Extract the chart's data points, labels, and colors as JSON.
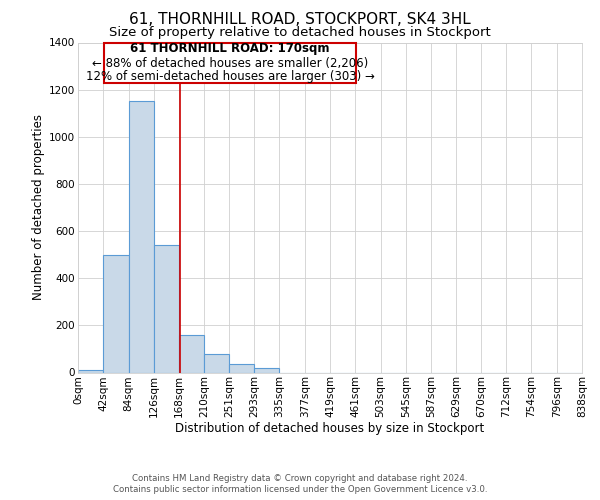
{
  "title": "61, THORNHILL ROAD, STOCKPORT, SK4 3HL",
  "subtitle": "Size of property relative to detached houses in Stockport",
  "xlabel": "Distribution of detached houses by size in Stockport",
  "ylabel": "Number of detached properties",
  "footer_line1": "Contains HM Land Registry data © Crown copyright and database right 2024.",
  "footer_line2": "Contains public sector information licensed under the Open Government Licence v3.0.",
  "bin_labels": [
    "0sqm",
    "42sqm",
    "84sqm",
    "126sqm",
    "168sqm",
    "210sqm",
    "251sqm",
    "293sqm",
    "335sqm",
    "377sqm",
    "419sqm",
    "461sqm",
    "503sqm",
    "545sqm",
    "587sqm",
    "629sqm",
    "670sqm",
    "712sqm",
    "754sqm",
    "796sqm",
    "838sqm"
  ],
  "bar_values": [
    10,
    500,
    1150,
    540,
    160,
    80,
    35,
    18,
    0,
    0,
    0,
    0,
    0,
    0,
    0,
    0,
    0,
    0,
    0,
    0
  ],
  "bar_color": "#c9d9e8",
  "bar_edge_color": "#5b9bd5",
  "grid_color": "#d0d0d0",
  "bg_color": "#ffffff",
  "annotation_box_edge": "#cc0000",
  "annotation_line_color": "#cc0000",
  "property_label": "61 THORNHILL ROAD: 170sqm",
  "annotation_line1": "← 88% of detached houses are smaller (2,206)",
  "annotation_line2": "12% of semi-detached houses are larger (303) →",
  "property_line_x": 170,
  "ylim": [
    0,
    1400
  ],
  "yticks": [
    0,
    200,
    400,
    600,
    800,
    1000,
    1200,
    1400
  ],
  "title_fontsize": 11,
  "subtitle_fontsize": 9.5,
  "annotation_fontsize": 8.5,
  "axis_label_fontsize": 8.5,
  "tick_fontsize": 7.5
}
